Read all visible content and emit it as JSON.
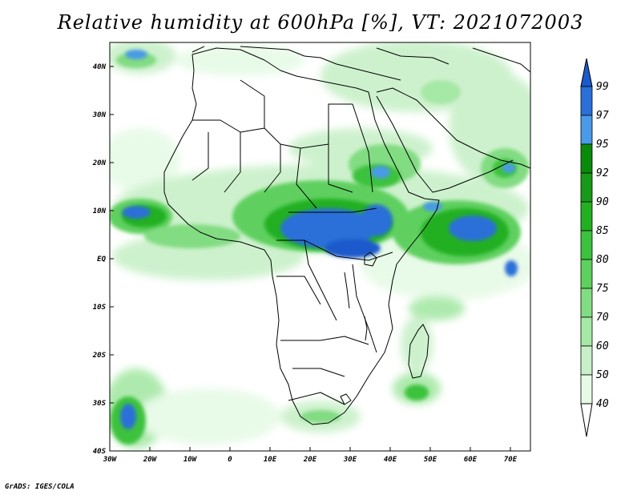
{
  "title": "Relative humidity at 600hPa [%], VT: 2021072003",
  "credit": "GrADS: IGES/COLA",
  "map": {
    "region": "Africa",
    "lon_range": [
      -30,
      75
    ],
    "lat_range": [
      -40,
      45
    ],
    "x_ticks": [
      "30W",
      "20W",
      "10W",
      "0",
      "10E",
      "20E",
      "30E",
      "40E",
      "50E",
      "60E",
      "70E"
    ],
    "y_ticks": [
      "40N",
      "30N",
      "20N",
      "10N",
      "EQ",
      "10S",
      "20S",
      "30S",
      "40S"
    ]
  },
  "colorbar": {
    "levels": [
      "40",
      "50",
      "60",
      "70",
      "75",
      "80",
      "85",
      "90",
      "92",
      "95",
      "97",
      "99"
    ],
    "colors": [
      "#ffffff",
      "#e6fae6",
      "#c8f0c8",
      "#a6e8a6",
      "#82dc82",
      "#5ed05e",
      "#3cc23c",
      "#22b022",
      "#189a18",
      "#0a8a0a",
      "#4a9ae8",
      "#2a70d8",
      "#1a5acc"
    ]
  }
}
